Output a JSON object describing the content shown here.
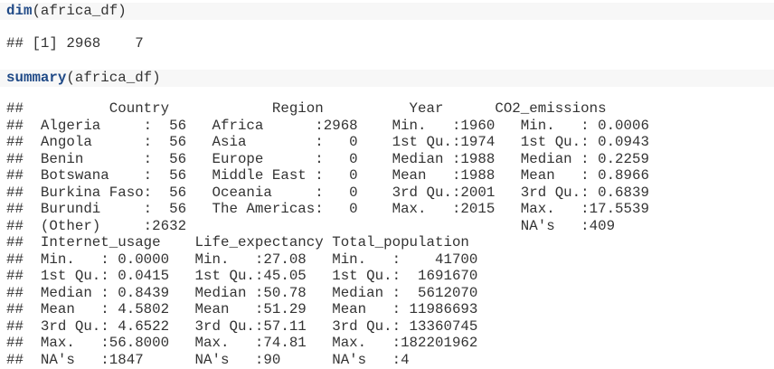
{
  "blocks": [
    {
      "code_fn": "dim",
      "code_args": "(africa_df)",
      "output": [
        "## [1] 2968    7"
      ]
    },
    {
      "code_fn": "summary",
      "code_args": "(africa_df)",
      "output": [
        "##          Country            Region          Year      CO2_emissions",
        "##  Algeria     :  56   Africa      :2968    Min.   :1960   Min.   : 0.0006",
        "##  Angola      :  56   Asia        :   0    1st Qu.:1974   1st Qu.: 0.0943",
        "##  Benin       :  56   Europe      :   0    Median :1988   Median : 0.2259",
        "##  Botswana    :  56   Middle East :   0    Mean   :1988   Mean   : 0.8966",
        "##  Burkina Faso:  56   Oceania     :   0    3rd Qu.:2001   3rd Qu.: 0.6839",
        "##  Burundi     :  56   The Americas:   0    Max.   :2015   Max.   :17.5539",
        "##  (Other)     :2632                                       NA's   :409",
        "##  Internet_usage    Life_expectancy Total_population",
        "##  Min.   : 0.0000   Min.   :27.08   Min.   :    41700",
        "##  1st Qu.: 0.0415   1st Qu.:45.05   1st Qu.:  1691670",
        "##  Median : 0.8439   Median :50.78   Median :  5612070",
        "##  Mean   : 4.5802   Mean   :51.29   Mean   : 11986693",
        "##  3rd Qu.: 4.6522   3rd Qu.:57.11   3rd Qu.: 13360745",
        "##  Max.   :56.8000   Max.   :74.81   Max.   :182201962",
        "##  NA's   :1847      NA's   :90      NA's   :4"
      ]
    }
  ]
}
